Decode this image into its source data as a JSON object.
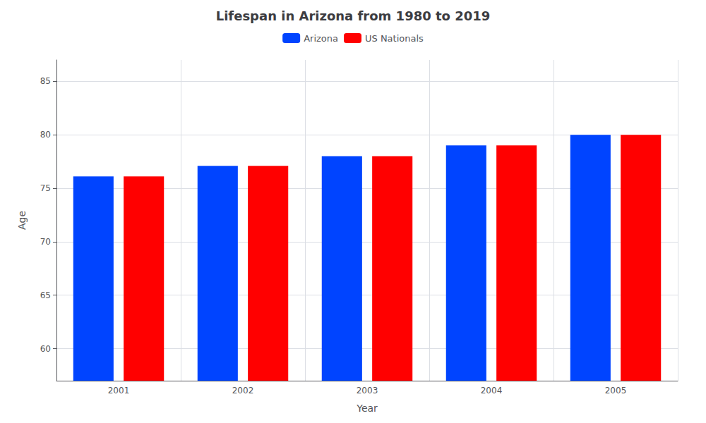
{
  "chart_data": {
    "type": "bar",
    "title": "Lifespan in Arizona from 1980 to 2019",
    "xlabel": "Year",
    "ylabel": "Age",
    "categories": [
      "2001",
      "2002",
      "2003",
      "2004",
      "2005"
    ],
    "series": [
      {
        "name": "Arizona",
        "color": "#0044ff",
        "values": [
          76.1,
          77.1,
          78.0,
          79.0,
          80.0
        ]
      },
      {
        "name": "US Nationals",
        "color": "#ff0000",
        "values": [
          76.1,
          77.1,
          78.0,
          79.0,
          80.0
        ]
      }
    ],
    "ylim": [
      57,
      87
    ],
    "yticks": [
      60,
      65,
      70,
      75,
      80,
      85
    ],
    "grid": true,
    "legend": "top"
  }
}
